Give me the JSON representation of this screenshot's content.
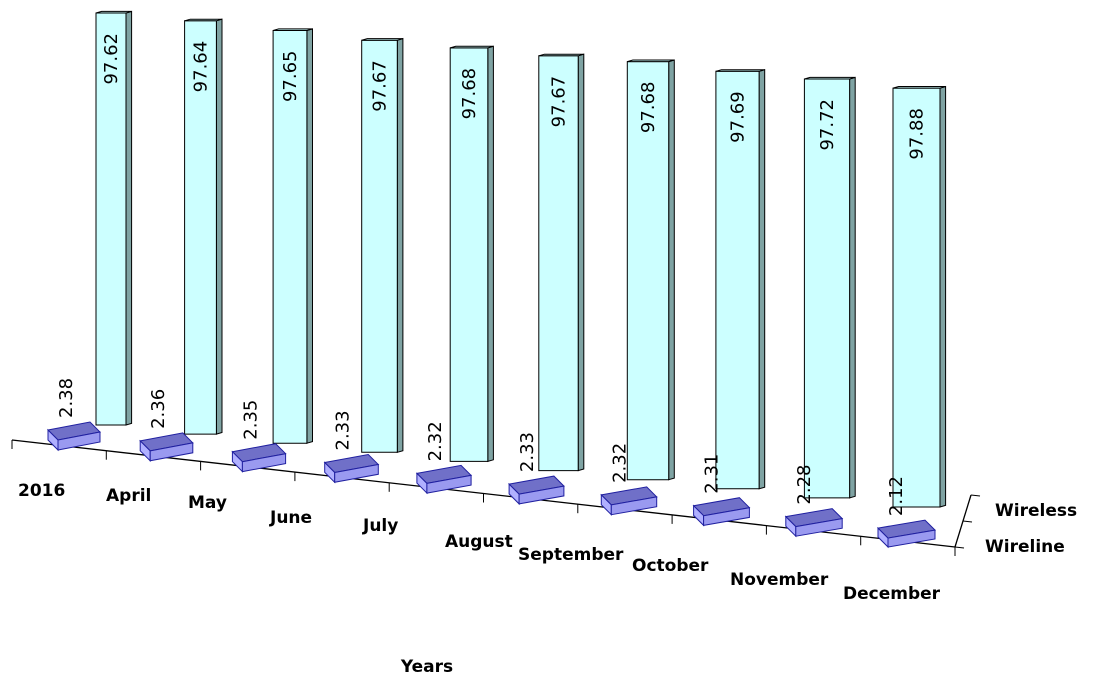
{
  "chart_data": {
    "type": "bar",
    "subtype": "3d-column",
    "title": "",
    "xlabel": "Years",
    "categories": [
      "2016",
      "April",
      "May",
      "June",
      "July",
      "August",
      "September",
      "October",
      "November",
      "December"
    ],
    "series": [
      {
        "name": "Wireline",
        "values": [
          2.38,
          2.36,
          2.35,
          2.33,
          2.32,
          2.33,
          2.32,
          2.31,
          2.28,
          2.12
        ],
        "color": "#6666CC"
      },
      {
        "name": "Wireless",
        "values": [
          97.62,
          97.64,
          97.65,
          97.67,
          97.68,
          97.67,
          97.68,
          97.69,
          97.72,
          97.88
        ],
        "color": "#CCFFFF"
      }
    ],
    "gridlines": false,
    "legend": "none"
  }
}
